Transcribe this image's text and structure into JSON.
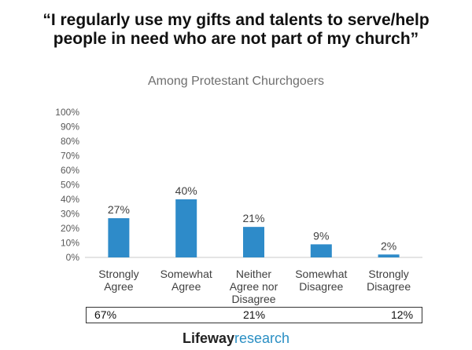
{
  "title": {
    "line1": "“I regularly use my gifts and talents to serve/help",
    "line2": "people in need who are not part of my church”"
  },
  "chart_data": {
    "type": "bar",
    "title": "“I regularly use my gifts and talents to serve/help people in need who are not part of my church”",
    "subtitle": "Among Protestant Churchgoers",
    "categories": [
      [
        "Strongly",
        "Agree"
      ],
      [
        "Somewhat",
        "Agree"
      ],
      [
        "Neither",
        "Agree nor",
        "Disagree"
      ],
      [
        "Somewhat",
        "Disagree"
      ],
      [
        "Strongly",
        "Disagree"
      ]
    ],
    "values": [
      27,
      40,
      21,
      9,
      2
    ],
    "data_labels": [
      "27%",
      "40%",
      "21%",
      "9%",
      "2%"
    ],
    "ylim": [
      0,
      100
    ],
    "yticks": [
      "0%",
      "10%",
      "20%",
      "30%",
      "40%",
      "50%",
      "60%",
      "70%",
      "80%",
      "90%",
      "100%"
    ],
    "xlabel": "",
    "ylabel": "",
    "grid": false,
    "bar_color": "#2e8bc9"
  },
  "summary": {
    "agree": "67%",
    "neither": "21%",
    "disagree": "12%"
  },
  "logo": {
    "part1": "Lifeway",
    "part2": "research"
  }
}
